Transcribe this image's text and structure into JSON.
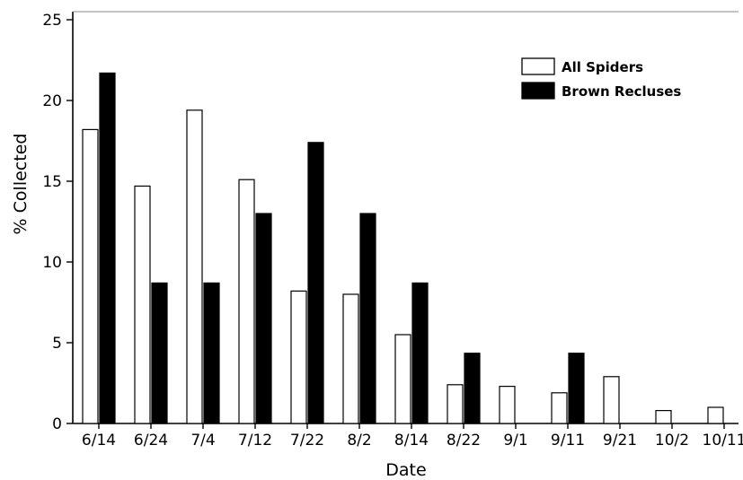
{
  "chart_data": {
    "type": "bar",
    "title": "",
    "xlabel": "Date",
    "ylabel": "% Collected",
    "ylim": [
      0,
      25
    ],
    "yticks": [
      0,
      5,
      10,
      15,
      20,
      25
    ],
    "grid": false,
    "legend_position": "top-right",
    "categories": [
      "6/14",
      "6/24",
      "7/4",
      "7/12",
      "7/22",
      "8/2",
      "8/14",
      "8/22",
      "9/1",
      "9/11",
      "9/21",
      "10/2",
      "10/11"
    ],
    "series": [
      {
        "name": "All Spiders",
        "color": "#ffffff",
        "values": [
          18.2,
          14.7,
          19.4,
          15.1,
          8.2,
          8.0,
          5.5,
          2.4,
          2.3,
          1.9,
          2.9,
          0.8,
          1.0
        ]
      },
      {
        "name": "Brown Recluses",
        "color": "#000000",
        "values": [
          21.7,
          8.7,
          8.7,
          13.0,
          17.4,
          13.0,
          8.7,
          4.35,
          0,
          4.35,
          0,
          0,
          0
        ]
      }
    ]
  }
}
